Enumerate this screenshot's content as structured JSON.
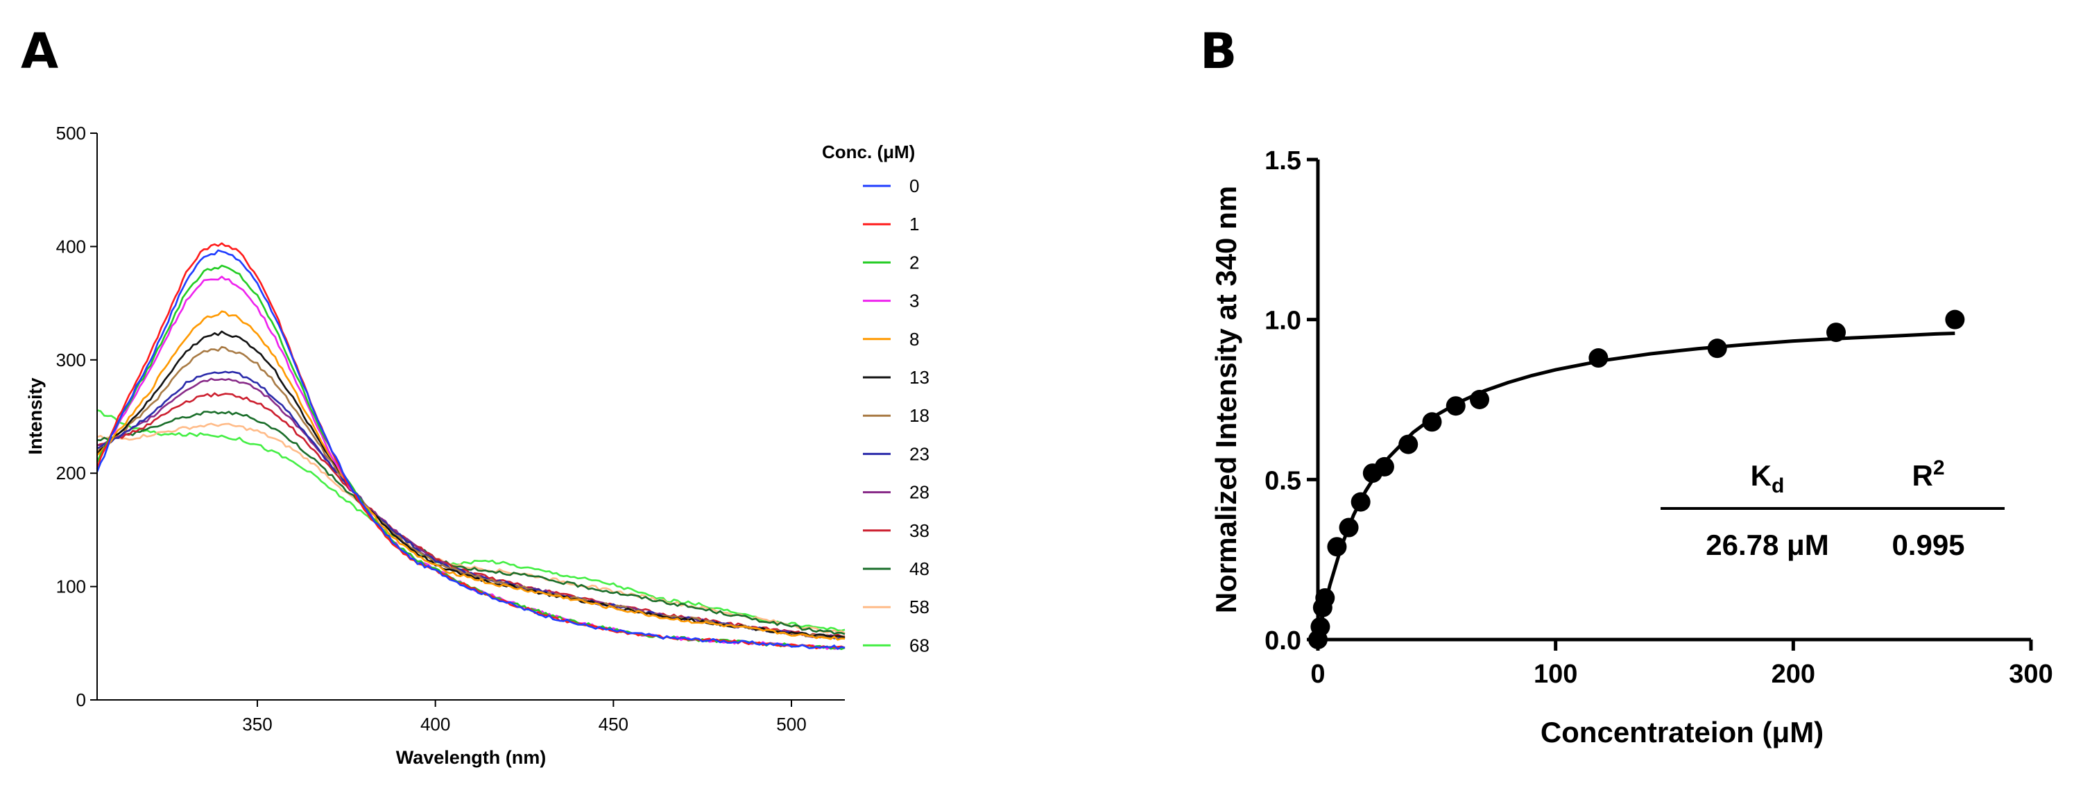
{
  "figure": {
    "panel_a_letter": "A",
    "panel_b_letter": "B"
  },
  "chart_data": [
    {
      "type": "line",
      "panel": "A",
      "xlabel": "Wavelength (nm)",
      "ylabel": "Intensity",
      "xlim": [
        305,
        515
      ],
      "ylim": [
        0,
        500
      ],
      "xticks": [
        350,
        400,
        450,
        500
      ],
      "yticks": [
        0,
        100,
        200,
        300,
        400,
        500
      ],
      "grid": false,
      "legend_title": "Conc. (μM)",
      "legend_position": "right",
      "x": [
        305,
        310,
        315,
        320,
        325,
        330,
        335,
        340,
        345,
        350,
        355,
        360,
        365,
        370,
        375,
        380,
        385,
        390,
        395,
        400,
        405,
        410,
        415,
        420,
        425,
        430,
        435,
        440,
        445,
        450,
        455,
        460,
        465,
        470,
        475,
        480,
        485,
        490,
        495,
        500,
        505,
        510,
        515
      ],
      "series": [
        {
          "name": "0",
          "color": "#1f3cff",
          "values": [
            200,
            240,
            270,
            300,
            335,
            370,
            392,
            396,
            388,
            368,
            338,
            300,
            262,
            226,
            195,
            170,
            150,
            133,
            121,
            114,
            106,
            98,
            92,
            86,
            80,
            75,
            71,
            67,
            64,
            61,
            59,
            57,
            55,
            54,
            53,
            52,
            51,
            50,
            49,
            48,
            47,
            47,
            46
          ]
        },
        {
          "name": "1",
          "color": "#ff1a1a",
          "values": [
            205,
            243,
            275,
            306,
            342,
            377,
            398,
            403,
            395,
            374,
            342,
            303,
            263,
            225,
            193,
            168,
            148,
            132,
            121,
            114,
            106,
            99,
            92,
            86,
            81,
            76,
            71,
            67,
            64,
            61,
            59,
            57,
            55,
            54,
            53,
            52,
            51,
            50,
            49,
            48,
            47,
            46,
            46
          ]
        },
        {
          "name": "2",
          "color": "#22cc22",
          "values": [
            210,
            240,
            268,
            296,
            328,
            360,
            378,
            383,
            375,
            356,
            328,
            293,
            258,
            224,
            195,
            171,
            151,
            135,
            123,
            115,
            107,
            99,
            93,
            87,
            82,
            77,
            72,
            68,
            65,
            62,
            59,
            57,
            55,
            54,
            53,
            52,
            51,
            50,
            49,
            48,
            47,
            46,
            46
          ]
        },
        {
          "name": "3",
          "color": "#ee22ee",
          "values": [
            210,
            238,
            265,
            292,
            323,
            352,
            369,
            373,
            365,
            346,
            320,
            287,
            253,
            221,
            193,
            170,
            150,
            134,
            123,
            115,
            107,
            99,
            93,
            87,
            82,
            77,
            72,
            68,
            65,
            62,
            59,
            57,
            55,
            54,
            53,
            52,
            51,
            50,
            49,
            48,
            47,
            46,
            46
          ]
        },
        {
          "name": "8",
          "color": "#ff9900",
          "values": [
            215,
            233,
            252,
            273,
            298,
            320,
            337,
            342,
            337,
            323,
            302,
            275,
            246,
            218,
            193,
            172,
            154,
            138,
            127,
            118,
            112,
            108,
            103,
            100,
            97,
            94,
            91,
            88,
            84,
            81,
            78,
            75,
            72,
            70,
            68,
            66,
            64,
            62,
            60,
            58,
            56,
            55,
            54
          ]
        },
        {
          "name": "13",
          "color": "#111111",
          "values": [
            218,
            232,
            248,
            265,
            287,
            307,
            320,
            324,
            320,
            308,
            290,
            266,
            241,
            216,
            193,
            173,
            156,
            141,
            129,
            120,
            113,
            109,
            104,
            101,
            98,
            94,
            91,
            88,
            85,
            82,
            79,
            76,
            73,
            71,
            69,
            67,
            65,
            63,
            61,
            59,
            57,
            56,
            55
          ]
        },
        {
          "name": "18",
          "color": "#a87a44",
          "values": [
            220,
            231,
            245,
            259,
            278,
            296,
            307,
            310,
            306,
            296,
            280,
            259,
            236,
            213,
            192,
            173,
            157,
            143,
            131,
            121,
            115,
            110,
            106,
            102,
            99,
            95,
            92,
            89,
            86,
            83,
            80,
            77,
            74,
            72,
            70,
            67,
            65,
            63,
            61,
            59,
            57,
            56,
            55
          ]
        },
        {
          "name": "23",
          "color": "#2a2aaa",
          "values": [
            222,
            230,
            240,
            252,
            266,
            280,
            288,
            290,
            287,
            279,
            266,
            249,
            230,
            210,
            191,
            174,
            158,
            145,
            133,
            123,
            116,
            111,
            106,
            103,
            99,
            96,
            92,
            89,
            86,
            83,
            80,
            77,
            74,
            72,
            70,
            67,
            65,
            63,
            61,
            59,
            57,
            56,
            55
          ]
        },
        {
          "name": "28",
          "color": "#882a88",
          "values": [
            224,
            230,
            239,
            249,
            262,
            274,
            282,
            284,
            281,
            274,
            262,
            246,
            228,
            209,
            191,
            174,
            159,
            146,
            134,
            124,
            116,
            111,
            107,
            103,
            99,
            96,
            93,
            89,
            86,
            83,
            80,
            77,
            74,
            72,
            70,
            67,
            65,
            63,
            61,
            59,
            57,
            56,
            55
          ]
        },
        {
          "name": "38",
          "color": "#cc1e2e",
          "values": [
            226,
            230,
            236,
            244,
            254,
            263,
            268,
            270,
            268,
            262,
            252,
            239,
            223,
            206,
            189,
            173,
            159,
            146,
            135,
            125,
            117,
            112,
            108,
            104,
            100,
            97,
            94,
            90,
            87,
            84,
            81,
            78,
            75,
            73,
            71,
            68,
            66,
            64,
            62,
            60,
            58,
            57,
            56
          ]
        },
        {
          "name": "48",
          "color": "#1a6e2a",
          "values": [
            230,
            232,
            235,
            240,
            245,
            250,
            253,
            254,
            252,
            247,
            239,
            228,
            215,
            200,
            185,
            171,
            158,
            146,
            135,
            125,
            118,
            116,
            114,
            112,
            110,
            107,
            104,
            101,
            98,
            95,
            92,
            89,
            86,
            83,
            80,
            77,
            74,
            71,
            68,
            65,
            62,
            60,
            58
          ]
        },
        {
          "name": "58",
          "color": "#ffbb88",
          "values": [
            232,
            230,
            231,
            234,
            237,
            240,
            242,
            243,
            241,
            237,
            230,
            221,
            210,
            197,
            183,
            170,
            157,
            145,
            134,
            125,
            119,
            117,
            115,
            113,
            111,
            108,
            105,
            102,
            99,
            96,
            93,
            90,
            87,
            84,
            81,
            78,
            75,
            72,
            69,
            66,
            63,
            61,
            59
          ]
        },
        {
          "name": "68",
          "color": "#44ee44",
          "values": [
            255,
            248,
            240,
            236,
            234,
            234,
            234,
            233,
            230,
            225,
            218,
            210,
            200,
            188,
            176,
            164,
            152,
            141,
            131,
            122,
            120,
            121,
            123,
            120,
            117,
            114,
            111,
            108,
            105,
            102,
            97,
            92,
            88,
            86,
            84,
            80,
            76,
            72,
            69,
            67,
            65,
            63,
            62
          ]
        }
      ]
    },
    {
      "type": "scatter",
      "panel": "B",
      "xlabel": "Concentrateion (μM)",
      "ylabel": "Normalized Intensity at 340 nm",
      "xlim": [
        0,
        300
      ],
      "ylim": [
        0,
        1.5
      ],
      "xticks": [
        0,
        100,
        200,
        300
      ],
      "yticks": [
        0.0,
        0.5,
        1.0,
        1.5
      ],
      "grid": false,
      "points": {
        "x": [
          0,
          1,
          2,
          3,
          8,
          13,
          18,
          23,
          28,
          38,
          48,
          58,
          68,
          118,
          168,
          218,
          268
        ],
        "y": [
          0.0,
          0.04,
          0.1,
          0.13,
          0.29,
          0.35,
          0.43,
          0.52,
          0.54,
          0.61,
          0.68,
          0.73,
          0.75,
          0.88,
          0.91,
          0.96,
          1.0
        ]
      },
      "fit": {
        "x": [
          0,
          2,
          5,
          10,
          15,
          20,
          25,
          30,
          40,
          50,
          60,
          70,
          80,
          90,
          100,
          120,
          140,
          160,
          180,
          200,
          220,
          240,
          260,
          268
        ],
        "y": [
          0.0,
          0.075,
          0.169,
          0.294,
          0.389,
          0.463,
          0.522,
          0.571,
          0.647,
          0.702,
          0.744,
          0.777,
          0.803,
          0.825,
          0.843,
          0.872,
          0.893,
          0.909,
          0.922,
          0.933,
          0.941,
          0.948,
          0.955,
          0.957
        ]
      },
      "annotation": {
        "kd_label": "K",
        "kd_subscript": "d",
        "r2_label": "R",
        "r2_superscript": "2",
        "kd_value": "26.78 μM",
        "r2_value": "0.995"
      }
    }
  ]
}
